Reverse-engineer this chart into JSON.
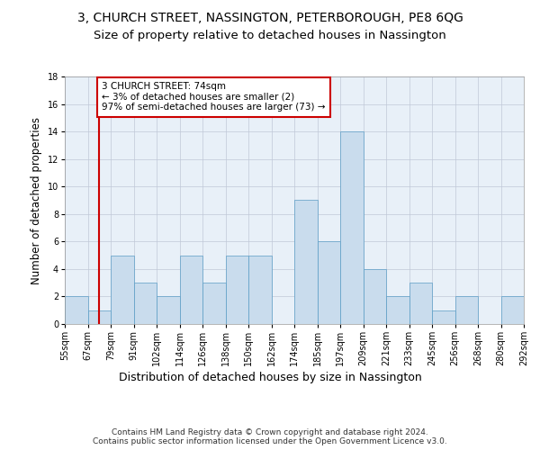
{
  "title": "3, CHURCH STREET, NASSINGTON, PETERBOROUGH, PE8 6QG",
  "subtitle": "Size of property relative to detached houses in Nassington",
  "xlabel": "Distribution of detached houses by size in Nassington",
  "ylabel": "Number of detached properties",
  "categories": [
    "55sqm",
    "67sqm",
    "79sqm",
    "91sqm",
    "102sqm",
    "114sqm",
    "126sqm",
    "138sqm",
    "150sqm",
    "162sqm",
    "174sqm",
    "185sqm",
    "197sqm",
    "209sqm",
    "221sqm",
    "233sqm",
    "245sqm",
    "256sqm",
    "268sqm",
    "280sqm",
    "292sqm"
  ],
  "values": [
    2,
    1,
    5,
    3,
    2,
    5,
    3,
    5,
    5,
    0,
    9,
    6,
    14,
    4,
    2,
    3,
    1,
    2,
    0,
    2
  ],
  "bar_color": "#c9dced",
  "bar_edge_color": "#5a9cc5",
  "red_line_x": 1.5,
  "annotation_lines": [
    "3 CHURCH STREET: 74sqm",
    "← 3% of detached houses are smaller (2)",
    "97% of semi-detached houses are larger (73) →"
  ],
  "annotation_box_color": "#ffffff",
  "annotation_box_edge": "#cc0000",
  "red_line_color": "#cc0000",
  "ylim": [
    0,
    18
  ],
  "yticks": [
    0,
    2,
    4,
    6,
    8,
    10,
    12,
    14,
    16,
    18
  ],
  "footer": "Contains HM Land Registry data © Crown copyright and database right 2024.\nContains public sector information licensed under the Open Government Licence v3.0.",
  "title_fontsize": 10,
  "subtitle_fontsize": 9.5,
  "xlabel_fontsize": 9,
  "ylabel_fontsize": 8.5,
  "tick_fontsize": 7,
  "annotation_fontsize": 7.5,
  "footer_fontsize": 6.5
}
